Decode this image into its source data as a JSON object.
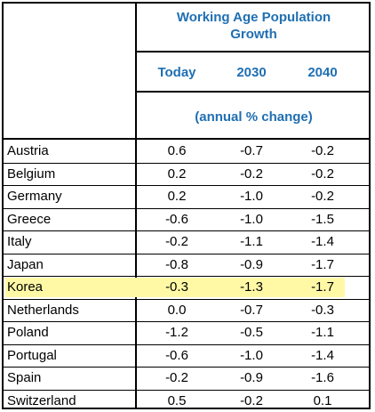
{
  "header": {
    "title_line1": "Working Age Population",
    "title_line2": "Growth",
    "columns": [
      "Today",
      "2030",
      "2040"
    ],
    "units": "(annual % change)"
  },
  "colors": {
    "header_text": "#1f6fb2",
    "highlight": "#fff9a6"
  },
  "rows": [
    {
      "country": "Austria",
      "today": "0.6",
      "y2030": "-0.7",
      "y2040": "-0.2"
    },
    {
      "country": "Belgium",
      "today": "0.2",
      "y2030": "-0.2",
      "y2040": "-0.2"
    },
    {
      "country": "Germany",
      "today": "0.2",
      "y2030": "-1.0",
      "y2040": "-0.2"
    },
    {
      "country": "Greece",
      "today": "-0.6",
      "y2030": "-1.0",
      "y2040": "-1.5"
    },
    {
      "country": "Italy",
      "today": "-0.2",
      "y2030": "-1.1",
      "y2040": "-1.4"
    },
    {
      "country": "Japan",
      "today": "-0.8",
      "y2030": "-0.9",
      "y2040": "-1.7"
    },
    {
      "country": "Korea",
      "today": "-0.3",
      "y2030": "-1.3",
      "y2040": "-1.7"
    },
    {
      "country": "Netherlands",
      "today": "0.0",
      "y2030": "-0.7",
      "y2040": "-0.3"
    },
    {
      "country": "Poland",
      "today": "-1.2",
      "y2030": "-0.5",
      "y2040": "-1.1"
    },
    {
      "country": "Portugal",
      "today": "-0.6",
      "y2030": "-1.0",
      "y2040": "-1.4"
    },
    {
      "country": "Spain",
      "today": "-0.2",
      "y2030": "-0.9",
      "y2040": "-1.6"
    },
    {
      "country": "Switzerland",
      "today": "0.5",
      "y2030": "-0.2",
      "y2040": "0.1"
    }
  ]
}
